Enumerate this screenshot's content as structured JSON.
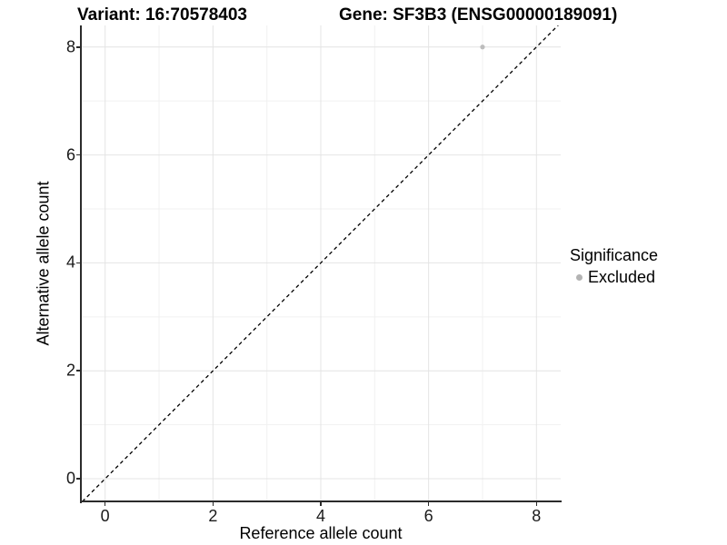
{
  "titles": {
    "variant": "Variant: 16:70578403",
    "gene": "Gene: SF3B3 (ENSG00000189091)"
  },
  "chart_data": {
    "type": "scatter",
    "title": "Variant: 16:70578403    Gene: SF3B3 (ENSG00000189091)",
    "xlabel": "Reference allele count",
    "ylabel": "Alternative allele count",
    "xlim": [
      -0.45,
      8.45
    ],
    "ylim": [
      -0.42,
      8.4
    ],
    "x_ticks": [
      0,
      2,
      4,
      6,
      8
    ],
    "y_ticks": [
      0,
      2,
      4,
      6,
      8
    ],
    "grid": true,
    "points": [
      {
        "x": 7,
        "y": 8,
        "series": "Excluded"
      }
    ],
    "identity_line": {
      "equation": "y = x",
      "style": "dashed",
      "color": "#000000"
    },
    "legend": {
      "position": "right",
      "title": "Significance",
      "entries": [
        {
          "label": "Excluded",
          "color": "#b3b3b3"
        }
      ]
    },
    "colors": {
      "major_grid": "#e4e4e4",
      "minor_grid": "#f1f1f1",
      "axis_line": "#2b2b2b",
      "point": "#bdbdbd",
      "background": "#ffffff"
    }
  }
}
